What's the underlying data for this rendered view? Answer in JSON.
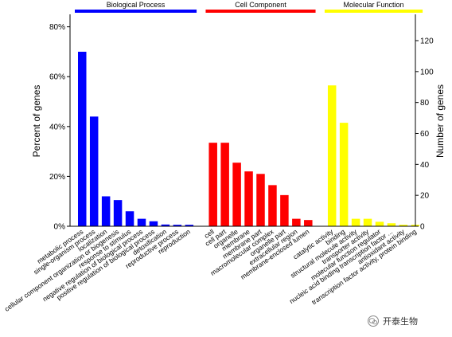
{
  "chart_data": {
    "type": "bar",
    "ylabel_left": "Percent of genes",
    "ylabel_right": "Number of genes",
    "ylim_left": [
      0,
      85
    ],
    "ylim_right": [
      0,
      137
    ],
    "left_ticks": [
      "0%",
      "20%",
      "40%",
      "60%",
      "80%"
    ],
    "left_tick_values": [
      0,
      20,
      40,
      60,
      80
    ],
    "right_ticks": [
      "0",
      "20",
      "40",
      "60",
      "80",
      "100",
      "120"
    ],
    "right_tick_values": [
      0,
      20,
      40,
      60,
      80,
      100,
      120
    ],
    "grid": false,
    "groups": [
      {
        "name": "Biological Process",
        "color": "#0000ff",
        "categories": [
          "metabolic process",
          "single-organism process",
          "localization",
          "cellular component organization or biogenesis",
          "response to stimulus",
          "negative regulation of biological process",
          "positive regulation of biological process",
          "detoxification",
          "reproductive process",
          "reproduction"
        ],
        "values": [
          70,
          44,
          12,
          10.5,
          6,
          3,
          2,
          0.7,
          0.6,
          0.6
        ]
      },
      {
        "name": "Cell Component",
        "color": "#ff0000",
        "categories": [
          "cell",
          "cell part",
          "organelle",
          "membrane",
          "membrane part",
          "macromolecular complex",
          "organelle part",
          "extracellular region",
          "membrane-enclosed lumen"
        ],
        "values": [
          33.5,
          33.5,
          25.5,
          22,
          21,
          16.5,
          12.5,
          3,
          2.5
        ]
      },
      {
        "name": "Molecular Function",
        "color": "#ffff00",
        "categories": [
          "catalytic activity",
          "binding",
          "structural molecule activity",
          "transporter activity",
          "molecular function regulator",
          "nucleic acid binding transcription factor ...",
          "antioxidant activity",
          "transcription factor activity, protein binding"
        ],
        "values": [
          56.5,
          41.5,
          3,
          3,
          1.8,
          1.2,
          0.6,
          0.6
        ]
      }
    ]
  },
  "watermark": {
    "text": "开泰生物",
    "icon": "wechat-icon"
  }
}
